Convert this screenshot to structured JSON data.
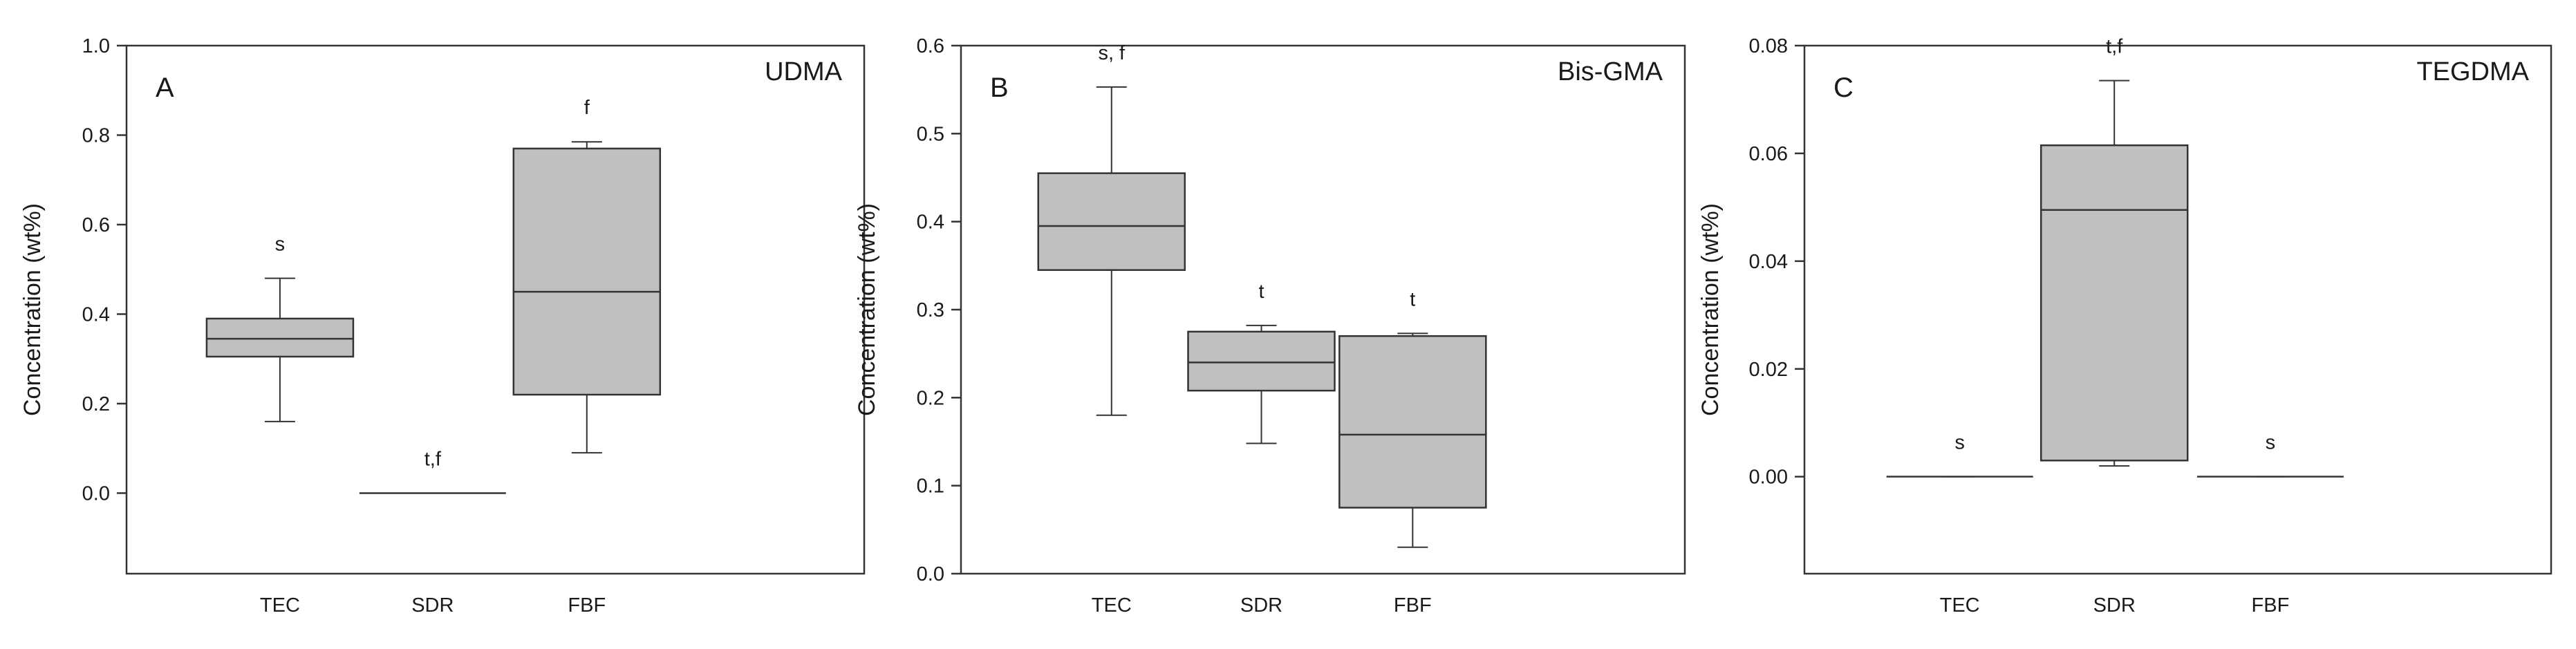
{
  "chart_data": [
    {
      "type": "box",
      "panel_label": "A",
      "compound_label": "UDMA",
      "ylabel": "Concentration (wt%)",
      "ylim": [
        -0.18,
        1.0
      ],
      "yticks": [
        0.0,
        0.2,
        0.4,
        0.6,
        0.8,
        1.0
      ],
      "ytick_labels": [
        "0.0",
        "0.2",
        "0.4",
        "0.6",
        "0.8",
        "1.0"
      ],
      "categories": [
        "TEC",
        "SDR",
        "FBF"
      ],
      "boxes": [
        {
          "category": "TEC",
          "whisker_low": 0.16,
          "q1": 0.305,
          "median": 0.345,
          "q3": 0.39,
          "whisker_high": 0.48,
          "annotation": "s"
        },
        {
          "category": "SDR",
          "whisker_low": 0.0,
          "q1": 0.0,
          "median": 0.0,
          "q3": 0.0,
          "whisker_high": 0.0,
          "annotation": "t,f"
        },
        {
          "category": "FBF",
          "whisker_low": 0.09,
          "q1": 0.22,
          "median": 0.45,
          "q3": 0.77,
          "whisker_high": 0.785,
          "annotation": "f"
        }
      ]
    },
    {
      "type": "box",
      "panel_label": "B",
      "compound_label": "Bis-GMA",
      "ylabel": "Concentration (wt%)",
      "ylim": [
        0.0,
        0.6
      ],
      "yticks": [
        0.0,
        0.1,
        0.2,
        0.3,
        0.4,
        0.5,
        0.6
      ],
      "ytick_labels": [
        "0.0",
        "0.1",
        "0.2",
        "0.3",
        "0.4",
        "0.5",
        "0.6"
      ],
      "categories": [
        "TEC",
        "SDR",
        "FBF"
      ],
      "boxes": [
        {
          "category": "TEC",
          "whisker_low": 0.18,
          "q1": 0.345,
          "median": 0.395,
          "q3": 0.455,
          "whisker_high": 0.553,
          "annotation": "s, f"
        },
        {
          "category": "SDR",
          "whisker_low": 0.148,
          "q1": 0.208,
          "median": 0.24,
          "q3": 0.275,
          "whisker_high": 0.282,
          "annotation": "t"
        },
        {
          "category": "FBF",
          "whisker_low": 0.03,
          "q1": 0.075,
          "median": 0.158,
          "q3": 0.27,
          "whisker_high": 0.273,
          "annotation": "t"
        }
      ]
    },
    {
      "type": "box",
      "panel_label": "C",
      "compound_label": "TEGDMA",
      "ylabel": "Concentration (wt%)",
      "ylim": [
        -0.018,
        0.08
      ],
      "yticks": [
        0.0,
        0.02,
        0.04,
        0.06,
        0.08
      ],
      "ytick_labels": [
        "0.00",
        "0.02",
        "0.04",
        "0.06",
        "0.08"
      ],
      "categories": [
        "TEC",
        "SDR",
        "FBF"
      ],
      "boxes": [
        {
          "category": "TEC",
          "whisker_low": 0.0,
          "q1": 0.0,
          "median": 0.0,
          "q3": 0.0,
          "whisker_high": 0.0,
          "annotation": "s"
        },
        {
          "category": "SDR",
          "whisker_low": 0.002,
          "q1": 0.003,
          "median": 0.0495,
          "q3": 0.0615,
          "whisker_high": 0.0735,
          "annotation": "t,f"
        },
        {
          "category": "FBF",
          "whisker_low": 0.0,
          "q1": 0.0,
          "median": 0.0,
          "q3": 0.0,
          "whisker_high": 0.0,
          "annotation": "s"
        }
      ]
    }
  ],
  "colors": {
    "box_fill": "#c0c0c0",
    "stroke": "#333333",
    "text": "#1a1a1a",
    "background": "#ffffff"
  }
}
